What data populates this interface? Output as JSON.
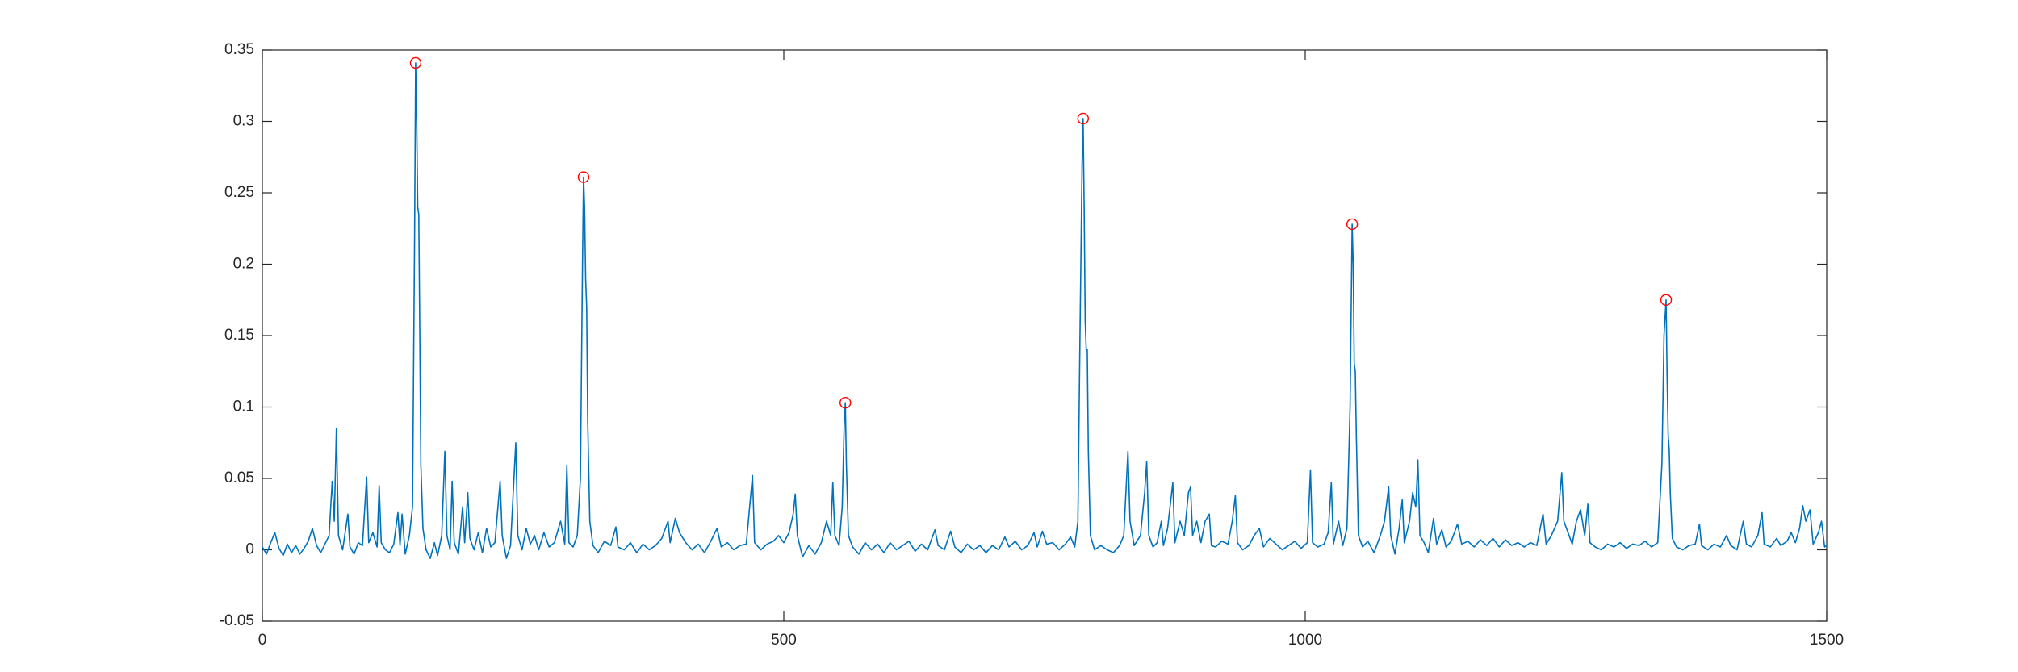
{
  "chart_data": {
    "type": "line",
    "xlim": [
      0,
      1500
    ],
    "xticks": [
      0,
      500,
      1000,
      1500
    ],
    "ylim": [
      -0.05,
      0.35
    ],
    "yticks": [
      -0.05,
      0,
      0.05,
      0.1,
      0.15,
      0.2,
      0.25,
      0.3,
      0.35
    ],
    "box": true,
    "grid": false,
    "series": [
      {
        "style": "line",
        "color": "#0072bd",
        "x": [
          0,
          4,
          8,
          12,
          16,
          20,
          24,
          28,
          32,
          36,
          40,
          44,
          48,
          52,
          56,
          60,
          64,
          67,
          69,
          71,
          73,
          77,
          82,
          84,
          88,
          92,
          96,
          100,
          102,
          106,
          110,
          112,
          114,
          118,
          122,
          126,
          130,
          132,
          134,
          137,
          141,
          144,
          146,
          147,
          148,
          149,
          150,
          151,
          152,
          154,
          157,
          161,
          165,
          168,
          172,
          175,
          177,
          180,
          182,
          184,
          188,
          192,
          194,
          197,
          199,
          203,
          207,
          211,
          215,
          219,
          223,
          228,
          230,
          234,
          238,
          243,
          245,
          249,
          253,
          257,
          261,
          265,
          270,
          275,
          280,
          286,
          290,
          292,
          294,
          298,
          302,
          305,
          307,
          308,
          309,
          310,
          311,
          312,
          314,
          317,
          322,
          328,
          334,
          339,
          341,
          347,
          353,
          359,
          365,
          371,
          377,
          383,
          389,
          391,
          396,
          400,
          406,
          412,
          418,
          424,
          430,
          436,
          440,
          446,
          452,
          458,
          464,
          470,
          472,
          478,
          484,
          490,
          495,
          500,
          505,
          509,
          511,
          513,
          518,
          524,
          530,
          536,
          541,
          545,
          547,
          549,
          553,
          556,
          558,
          559,
          560,
          562,
          566,
          572,
          578,
          584,
          590,
          596,
          602,
          608,
          614,
          620,
          626,
          632,
          638,
          645,
          648,
          654,
          660,
          664,
          670,
          676,
          682,
          688,
          694,
          700,
          706,
          712,
          716,
          722,
          728,
          734,
          740,
          743,
          748,
          752,
          758,
          764,
          770,
          775,
          779,
          782,
          784,
          786,
          787,
          788,
          789,
          790,
          791,
          792,
          794,
          798,
          804,
          810,
          816,
          822,
          826,
          830,
          832,
          836,
          842,
          846,
          848,
          850,
          854,
          858,
          862,
          864,
          868,
          873,
          875,
          880,
          884,
          888,
          890,
          892,
          896,
          900,
          904,
          908,
          910,
          914,
          920,
          926,
          930,
          933,
          935,
          940,
          946,
          951,
          956,
          960,
          966,
          972,
          978,
          984,
          990,
          996,
          1002,
          1005,
          1007,
          1012,
          1018,
          1022,
          1025,
          1027,
          1032,
          1036,
          1040,
          1043,
          1045,
          1046,
          1047,
          1048,
          1049,
          1051,
          1055,
          1060,
          1066,
          1072,
          1076,
          1080,
          1082,
          1086,
          1090,
          1093,
          1095,
          1100,
          1103,
          1106,
          1108,
          1110,
          1114,
          1118,
          1123,
          1126,
          1131,
          1135,
          1140,
          1146,
          1150,
          1156,
          1162,
          1168,
          1174,
          1180,
          1186,
          1192,
          1198,
          1204,
          1210,
          1216,
          1222,
          1228,
          1231,
          1236,
          1242,
          1246,
          1248,
          1252,
          1256,
          1260,
          1264,
          1268,
          1271,
          1273,
          1278,
          1284,
          1290,
          1296,
          1302,
          1308,
          1314,
          1320,
          1326,
          1332,
          1338,
          1342,
          1344,
          1346,
          1347,
          1348,
          1349,
          1350,
          1352,
          1356,
          1362,
          1368,
          1374,
          1378,
          1380,
          1386,
          1392,
          1398,
          1404,
          1408,
          1414,
          1420,
          1423,
          1428,
          1434,
          1438,
          1440,
          1446,
          1452,
          1456,
          1462,
          1466,
          1470,
          1474,
          1477,
          1480,
          1484,
          1487,
          1492,
          1495,
          1498,
          1500
        ],
        "values": [
          0.002,
          -0.003,
          0.005,
          0.012,
          0.001,
          -0.004,
          0.004,
          -0.002,
          0.003,
          -0.003,
          0.001,
          0.006,
          0.015,
          0.003,
          -0.002,
          0.004,
          0.01,
          0.048,
          0.02,
          0.085,
          0.01,
          0,
          0.025,
          0.002,
          -0.003,
          0.005,
          0.003,
          0.051,
          0.005,
          0.012,
          0.002,
          0.045,
          0.005,
          0,
          -0.002,
          0.004,
          0.026,
          0.003,
          0.025,
          -0.003,
          0.01,
          0.03,
          0.22,
          0.341,
          0.3,
          0.24,
          0.235,
          0.15,
          0.06,
          0.015,
          0,
          -0.006,
          0.005,
          -0.004,
          0.01,
          0.069,
          0.01,
          0,
          0.048,
          0.005,
          -0.003,
          0.03,
          0.005,
          0.04,
          0.008,
          0,
          0.012,
          -0.002,
          0.015,
          0.002,
          0.005,
          0.048,
          0.01,
          -0.006,
          0.003,
          0.075,
          0.01,
          0,
          0.015,
          0.004,
          0.01,
          0,
          0.012,
          0.002,
          0.005,
          0.02,
          0.004,
          0.059,
          0.005,
          0.002,
          0.01,
          0.05,
          0.2,
          0.261,
          0.24,
          0.19,
          0.17,
          0.09,
          0.02,
          0.003,
          -0.002,
          0.006,
          0.003,
          0.016,
          0.002,
          0,
          0.005,
          -0.002,
          0.004,
          0,
          0.003,
          0.008,
          0.02,
          0.005,
          0.022,
          0.012,
          0.005,
          0,
          0.004,
          -0.002,
          0.006,
          0.015,
          0.002,
          0.005,
          0,
          0.003,
          0.004,
          0.052,
          0.005,
          0,
          0.004,
          0.006,
          0.01,
          0.005,
          0.012,
          0.025,
          0.039,
          0.01,
          -0.005,
          0.003,
          -0.003,
          0.005,
          0.02,
          0.01,
          0.047,
          0.01,
          0.003,
          0.03,
          0.09,
          0.103,
          0.06,
          0.01,
          0.002,
          -0.003,
          0.005,
          0,
          0.004,
          -0.002,
          0.005,
          0,
          0.003,
          0.006,
          -0.001,
          0.004,
          0,
          0.014,
          0.003,
          0,
          0.013,
          0.002,
          -0.002,
          0.004,
          0,
          0.003,
          -0.002,
          0.003,
          0,
          0.009,
          0.002,
          0.006,
          0,
          0.003,
          0.012,
          0.002,
          0.013,
          0.004,
          0.005,
          0,
          0.004,
          0.009,
          0.002,
          0.02,
          0.15,
          0.27,
          0.302,
          0.24,
          0.16,
          0.14,
          0.14,
          0.07,
          0.01,
          0,
          0.003,
          0,
          -0.002,
          0.003,
          0.01,
          0.069,
          0.02,
          0.003,
          0.01,
          0.04,
          0.062,
          0.01,
          0.002,
          0.005,
          0.02,
          0.003,
          0.015,
          0.047,
          0.005,
          0.02,
          0.01,
          0.04,
          0.044,
          0.01,
          0.02,
          0.005,
          0.02,
          0.025,
          0.003,
          0.002,
          0.006,
          0.004,
          0.02,
          0.038,
          0.005,
          0,
          0.003,
          0.01,
          0.015,
          0.002,
          0.008,
          0.004,
          0,
          0.003,
          0.006,
          0.001,
          0.005,
          0.056,
          0.005,
          0.002,
          0.004,
          0.012,
          0.047,
          0.004,
          0.02,
          0.003,
          0.015,
          0.1,
          0.228,
          0.2,
          0.13,
          0.125,
          0.08,
          0.01,
          0.002,
          0.006,
          -0.002,
          0.01,
          0.02,
          0.044,
          0.01,
          -0.003,
          0.015,
          0.035,
          0.005,
          0.02,
          0.04,
          0.03,
          0.063,
          0.01,
          0.005,
          -0.002,
          0.022,
          0.004,
          0.014,
          0.002,
          0.006,
          0.018,
          0.004,
          0.006,
          0.002,
          0.007,
          0.003,
          0.008,
          0.002,
          0.007,
          0.003,
          0.005,
          0.002,
          0.005,
          0.003,
          0.025,
          0.004,
          0.01,
          0.02,
          0.054,
          0.02,
          0.012,
          0.004,
          0.02,
          0.028,
          0.01,
          0.032,
          0.005,
          0.002,
          0,
          0.004,
          0.002,
          0.005,
          0.001,
          0.004,
          0.003,
          0.006,
          0.002,
          0.005,
          0.06,
          0.15,
          0.175,
          0.12,
          0.08,
          0.07,
          0.04,
          0.008,
          0.002,
          0,
          0.003,
          0.004,
          0.018,
          0.003,
          0,
          0.004,
          0.002,
          0.01,
          0.003,
          0,
          0.02,
          0.004,
          0.002,
          0.01,
          0.026,
          0.004,
          0.002,
          0.008,
          0.003,
          0.006,
          0.012,
          0.005,
          0.015,
          0.031,
          0.02,
          0.028,
          0.004,
          0.012,
          0.02,
          0.002,
          0.003
        ]
      },
      {
        "style": "markers",
        "marker": "circle",
        "color": "#ff0000",
        "x": [
          147,
          308,
          559,
          787,
          1045,
          1346
        ],
        "values": [
          0.341,
          0.261,
          0.103,
          0.302,
          0.228,
          0.175
        ]
      }
    ]
  }
}
